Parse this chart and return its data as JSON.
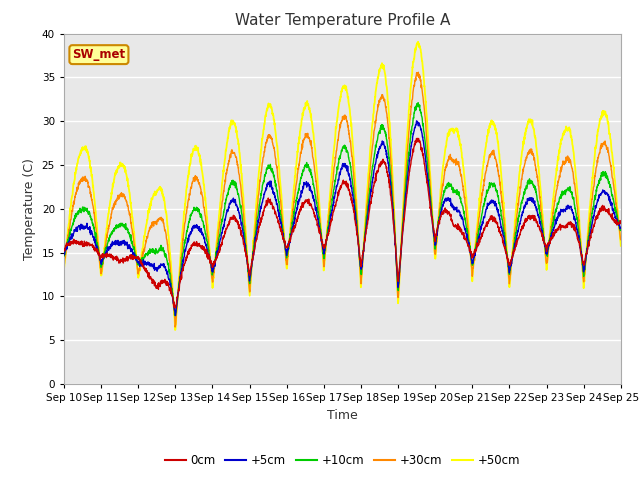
{
  "title": "Water Temperature Profile A",
  "xlabel": "Time",
  "ylabel": "Temperature (C)",
  "ylim": [
    0,
    40
  ],
  "yticks": [
    0,
    5,
    10,
    15,
    20,
    25,
    30,
    35,
    40
  ],
  "xtick_labels": [
    "Sep 10",
    "Sep 11",
    "Sep 12",
    "Sep 13",
    "Sep 14",
    "Sep 15",
    "Sep 16",
    "Sep 17",
    "Sep 18",
    "Sep 19",
    "Sep 20",
    "Sep 21",
    "Sep 22",
    "Sep 23",
    "Sep 24",
    "Sep 25"
  ],
  "series_colors": {
    "0cm": "#cc0000",
    "+5cm": "#0000cc",
    "+10cm": "#00cc00",
    "+30cm": "#ff8800",
    "+50cm": "#ffff00"
  },
  "legend_label": "SW_met",
  "fig_bg_color": "#ffffff",
  "axes_bg_color": "#e8e8e8",
  "grid_color": "#ffffff",
  "annotation_box_color": "#ffff99",
  "annotation_text_color": "#aa0000",
  "annotation_border_color": "#cc8800",
  "linewidth": 1.0
}
